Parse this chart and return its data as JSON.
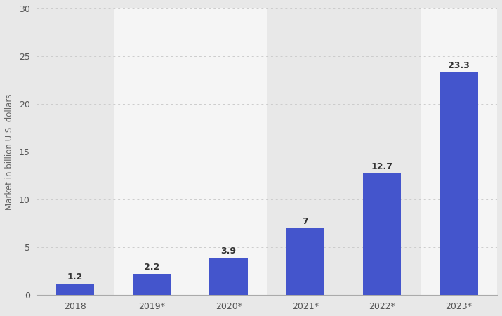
{
  "categories": [
    "2018",
    "2019*",
    "2020*",
    "2021*",
    "2022*",
    "2023*"
  ],
  "values": [
    1.2,
    2.2,
    3.9,
    7.0,
    12.7,
    23.3
  ],
  "bar_color": "#4455cc",
  "bar_width": 0.5,
  "ylabel": "Market in billion U.S. dollars",
  "ylim": [
    0,
    30
  ],
  "yticks": [
    0,
    5,
    10,
    15,
    20,
    25,
    30
  ],
  "grid_color": "#cccccc",
  "bg_gray": "#e8e8e8",
  "bg_white": "#f5f5f5",
  "plot_bg_color": "#e8e8e8",
  "label_fontsize": 9,
  "ylabel_fontsize": 8.5,
  "tick_fontsize": 9,
  "value_labels": [
    "1.2",
    "2.2",
    "3.9",
    "7",
    "12.7",
    "23.3"
  ],
  "col_colors": [
    "#e8e8e8",
    "#f5f5f5",
    "#f5f5f5",
    "#e8e8e8",
    "#e8e8e8",
    "#f5f5f5"
  ]
}
